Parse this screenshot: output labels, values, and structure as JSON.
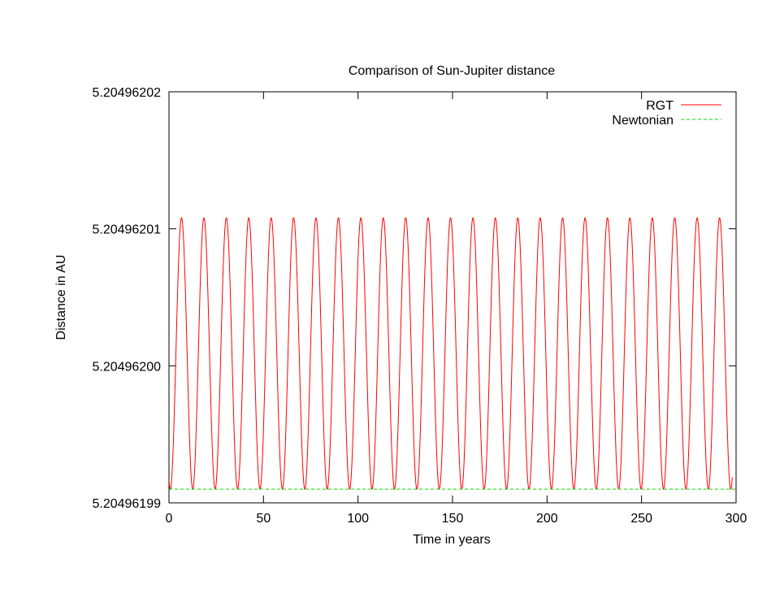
{
  "chart_data": {
    "type": "line",
    "title": "Comparison of Sun-Jupiter distance",
    "xlabel": "Time in years",
    "ylabel": "Distance in AU",
    "xlim": [
      0,
      300
    ],
    "ylim": [
      5.20496199,
      5.20496202
    ],
    "x_ticks": [
      0,
      50,
      100,
      150,
      200,
      250,
      300
    ],
    "y_ticks": [
      5.20496199,
      5.204962,
      5.20496201,
      5.20496202
    ],
    "y_tick_labels": [
      "5.20496199",
      "5.20496200",
      "5.20496201",
      "5.20496202"
    ],
    "grid": false,
    "legend_position": "top-right",
    "series": [
      {
        "name": "RGT",
        "color": "#ff0000",
        "style": "solid",
        "x_start": 0,
        "x_end": 298,
        "period": 11.86,
        "phase_offset": 0.7,
        "y_min": 5.204961991,
        "y_max": 5.2049620108
      },
      {
        "name": "Newtonian",
        "color": "#00dd00",
        "style": "dashed",
        "x": [
          0,
          300
        ],
        "values": [
          5.204961991,
          5.204961991
        ]
      }
    ]
  }
}
